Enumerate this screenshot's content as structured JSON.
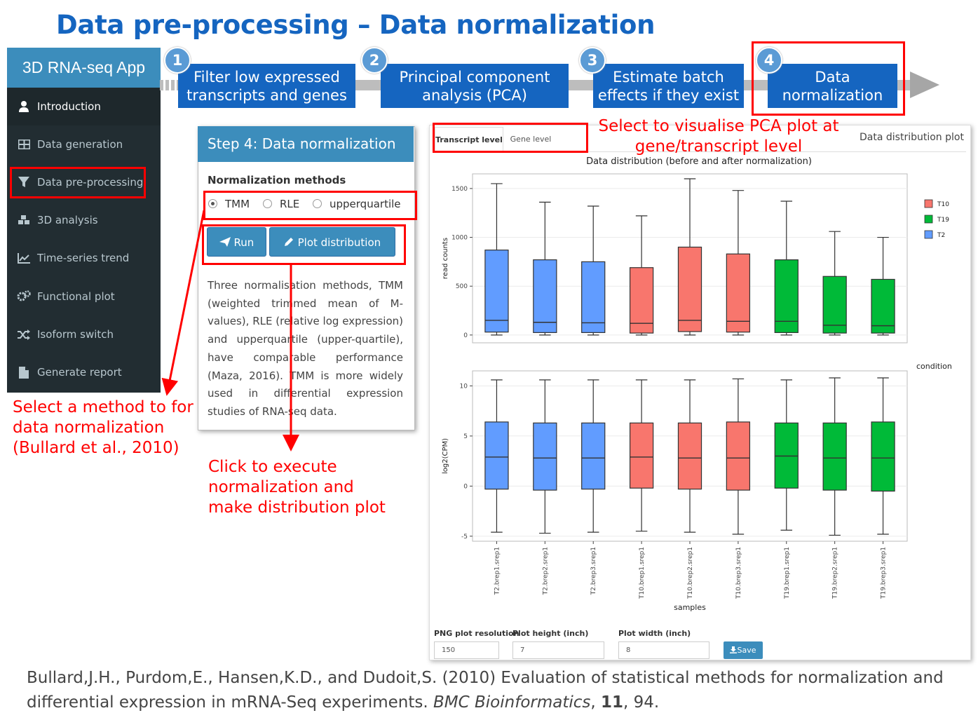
{
  "title": "Data pre-processing – Data normalization",
  "sidebar": {
    "app_title": "3D RNA-seq App",
    "items": [
      {
        "label": "Introduction",
        "icon": "user-icon"
      },
      {
        "label": "Data generation",
        "icon": "table-icon"
      },
      {
        "label": "Data pre-processing",
        "icon": "filter-icon"
      },
      {
        "label": "3D analysis",
        "icon": "cubes-icon"
      },
      {
        "label": "Time-series trend",
        "icon": "line-chart-icon"
      },
      {
        "label": "Functional plot",
        "icon": "gears-icon"
      },
      {
        "label": "Isoform switch",
        "icon": "random-icon"
      },
      {
        "label": "Generate report",
        "icon": "file-icon"
      }
    ]
  },
  "steps": [
    {
      "num": "1",
      "line1": "Filter low expressed",
      "line2": "transcripts and genes"
    },
    {
      "num": "2",
      "line1": "Principal component",
      "line2": "analysis (PCA)"
    },
    {
      "num": "3",
      "line1": "Estimate batch",
      "line2": "effects if they exist"
    },
    {
      "num": "4",
      "line1": "Data",
      "line2": "normalization"
    }
  ],
  "panel": {
    "title": "Step 4: Data normalization",
    "methods_label": "Normalization methods",
    "methods": [
      "TMM",
      "RLE",
      "upperquartile"
    ],
    "selected_method": "TMM",
    "run_label": "Run",
    "plot_label": "Plot distribution",
    "description": "Three normalisation methods, TMM (weighted trimmed mean of M-values), RLE (relative log expression) and upperquartile (upper-quartile), have comparable performance (Maza, 2016). TMM is more widely used in differential expression studies of RNA-seq data."
  },
  "annotations": {
    "select_method": [
      "Select a method to for",
      "data normalization",
      "(Bullard et al., 2010)"
    ],
    "click_execute": [
      "Click to execute",
      "normalization and",
      "make distribution plot"
    ],
    "visualise_pca": [
      "Select to visualise PCA plot at",
      "gene/transcript level"
    ]
  },
  "plot_panel": {
    "tabs": [
      "Transcript level",
      "Gene level"
    ],
    "selected_tab": "Transcript level",
    "header_right": "Data distribution plot",
    "inputs": [
      {
        "label": "PNG plot resolution",
        "value": "150"
      },
      {
        "label": "Plot height (inch)",
        "value": "7"
      },
      {
        "label": "Plot width (inch)",
        "value": "8"
      }
    ],
    "save_label": "Save"
  },
  "chart_data": {
    "type": "boxplot",
    "title": "Data distribution (before and after normalization)",
    "xlabel": "samples",
    "legend_title": "condition",
    "legend_position": "right",
    "legend": [
      {
        "name": "T10",
        "color": "#f8766d"
      },
      {
        "name": "T19",
        "color": "#00ba38"
      },
      {
        "name": "T2",
        "color": "#619cff"
      }
    ],
    "categories": [
      "T2.brep1.srep1",
      "T2.brep2.srep1",
      "T2.brep3.srep1",
      "T10.brep1.srep1",
      "T10.brep2.srep1",
      "T10.brep3.srep1",
      "T19.brep1.srep1",
      "T19.brep2.srep1",
      "T19.brep3.srep1"
    ],
    "conditions": [
      "T2",
      "T2",
      "T2",
      "T10",
      "T10",
      "T10",
      "T19",
      "T19",
      "T19"
    ],
    "panels": [
      {
        "ylabel": "read counts",
        "ylim": [
          -80,
          1650
        ],
        "yticks": [
          0,
          500,
          1000,
          1500
        ],
        "boxes": [
          {
            "whisker_low": 0,
            "q1": 30,
            "median": 150,
            "q3": 870,
            "whisker_high": 1550
          },
          {
            "whisker_low": 0,
            "q1": 25,
            "median": 130,
            "q3": 770,
            "whisker_high": 1360
          },
          {
            "whisker_low": 0,
            "q1": 25,
            "median": 125,
            "q3": 750,
            "whisker_high": 1320
          },
          {
            "whisker_low": 0,
            "q1": 20,
            "median": 120,
            "q3": 690,
            "whisker_high": 1220
          },
          {
            "whisker_low": 0,
            "q1": 35,
            "median": 150,
            "q3": 900,
            "whisker_high": 1600
          },
          {
            "whisker_low": 0,
            "q1": 30,
            "median": 140,
            "q3": 830,
            "whisker_high": 1480
          },
          {
            "whisker_low": 0,
            "q1": 25,
            "median": 140,
            "q3": 770,
            "whisker_high": 1370
          },
          {
            "whisker_low": 0,
            "q1": 20,
            "median": 100,
            "q3": 600,
            "whisker_high": 1060
          },
          {
            "whisker_low": 0,
            "q1": 20,
            "median": 95,
            "q3": 570,
            "whisker_high": 1000
          }
        ]
      },
      {
        "ylabel": "log2(CPM)",
        "ylim": [
          -5.5,
          11.5
        ],
        "yticks": [
          -5,
          0,
          5,
          10
        ],
        "boxes": [
          {
            "whisker_low": -4.6,
            "q1": -0.3,
            "median": 2.9,
            "q3": 6.4,
            "whisker_high": 10.6
          },
          {
            "whisker_low": -4.7,
            "q1": -0.4,
            "median": 2.8,
            "q3": 6.3,
            "whisker_high": 10.6
          },
          {
            "whisker_low": -4.6,
            "q1": -0.3,
            "median": 2.8,
            "q3": 6.3,
            "whisker_high": 10.6
          },
          {
            "whisker_low": -4.5,
            "q1": -0.2,
            "median": 2.9,
            "q3": 6.3,
            "whisker_high": 10.6
          },
          {
            "whisker_low": -4.6,
            "q1": -0.3,
            "median": 2.8,
            "q3": 6.3,
            "whisker_high": 10.6
          },
          {
            "whisker_low": -4.8,
            "q1": -0.4,
            "median": 2.8,
            "q3": 6.4,
            "whisker_high": 10.7
          },
          {
            "whisker_low": -4.4,
            "q1": -0.2,
            "median": 3.0,
            "q3": 6.3,
            "whisker_high": 10.6
          },
          {
            "whisker_low": -4.9,
            "q1": -0.4,
            "median": 2.8,
            "q3": 6.3,
            "whisker_high": 10.8
          },
          {
            "whisker_low": -4.8,
            "q1": -0.5,
            "median": 2.8,
            "q3": 6.4,
            "whisker_high": 10.8
          }
        ]
      }
    ]
  },
  "citation": {
    "authors": "Bullard,J.H., Purdom,E., Hansen,K.D., and Dudoit,S. (2010) Evaluation of statistical methods for normalization and differential expression in mRNA-Seq experiments. ",
    "journal": "BMC Bioinformatics",
    "sep1": ", ",
    "volume": "11",
    "pages": ", 94."
  }
}
